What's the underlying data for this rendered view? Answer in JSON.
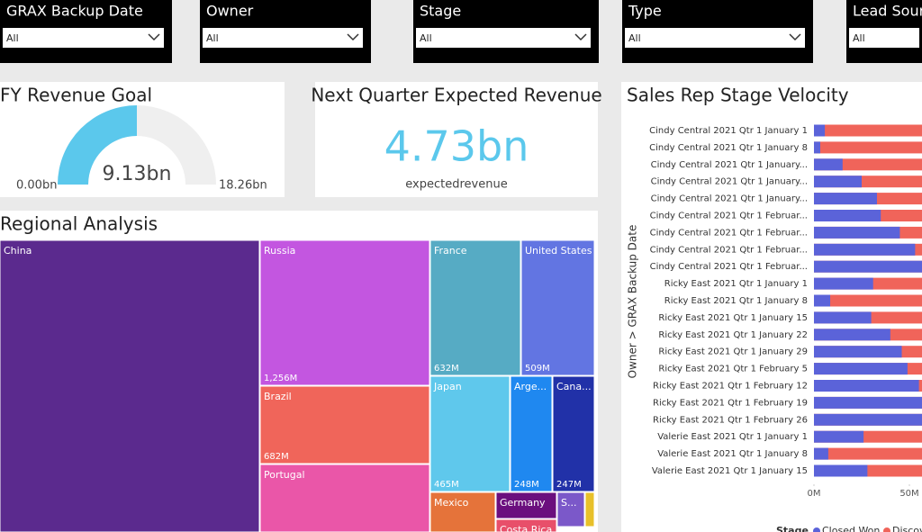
{
  "filters": [
    {
      "title": "GRAX Backup Date",
      "value": "All"
    },
    {
      "title": "Owner",
      "value": "All"
    },
    {
      "title": "Stage",
      "value": "All"
    },
    {
      "title": "Type",
      "value": "All"
    },
    {
      "title": "Lead Sour",
      "value": "All"
    }
  ],
  "fy_revenue_goal": {
    "title": "FY Revenue Goal",
    "color": "#5bc8ec",
    "min": {
      "value": 0,
      "label": "0.00bn"
    },
    "max": {
      "value": 18.26,
      "label": "18.26bn"
    },
    "value": {
      "value": 9.13,
      "label": "9.13bn"
    }
  },
  "next_quarter": {
    "title": "Next Quarter Expected Revenue",
    "value": "4.73bn",
    "caption": "expectedrevenue"
  },
  "regional_analysis": {
    "title": "Regional Analysis",
    "items": [
      {
        "name": "China",
        "color": "#5b2a8e"
      },
      {
        "name": "Russia",
        "label": "1,256M",
        "color": "#c356e0"
      },
      {
        "name": "Brazil",
        "label": "682M",
        "color": "#f0655a"
      },
      {
        "name": "Portugal",
        "color": "#ea56a8"
      },
      {
        "name": "France",
        "label": "632M",
        "color": "#56abc4"
      },
      {
        "name": "United States",
        "label": "509M",
        "color": "#6275e2"
      },
      {
        "name": "Japan",
        "label": "465M",
        "color": "#5fc8ec"
      },
      {
        "name": "Arge...",
        "label": "248M",
        "color": "#1f88f0"
      },
      {
        "name": "Cana...",
        "label": "247M",
        "color": "#2131a8"
      },
      {
        "name": "Mexico",
        "color": "#e5733a"
      },
      {
        "name": "Germany",
        "color": "#6b0f7e"
      },
      {
        "name": "Costa Rica",
        "color": "#e84f6a"
      },
      {
        "name": "S...",
        "color": "#7b58c9"
      }
    ]
  },
  "chart_data": {
    "type": "bar",
    "orientation": "horizontal",
    "title": "Sales Rep Stage Velocity",
    "y_label": "Owner > GRAX Backup Date",
    "legend_title": "Stage",
    "categories": [
      "Cindy Central 2021 Qtr 1 January 1",
      "Cindy Central 2021 Qtr 1 January 8",
      "Cindy Central 2021 Qtr 1 January...",
      "Cindy Central 2021 Qtr 1 January...",
      "Cindy Central 2021 Qtr 1 January...",
      "Cindy Central 2021 Qtr 1 Februar...",
      "Cindy Central 2021 Qtr 1 Februar...",
      "Cindy Central 2021 Qtr 1 Februar...",
      "Cindy Central 2021 Qtr 1 Februar...",
      "Ricky East 2021 Qtr 1 January 1",
      "Ricky East 2021 Qtr 1 January 8",
      "Ricky East 2021 Qtr 1 January 15",
      "Ricky East 2021 Qtr 1 January 22",
      "Ricky East 2021 Qtr 1 January 29",
      "Ricky East 2021 Qtr 1 February 5",
      "Ricky East 2021 Qtr 1 February 12",
      "Ricky East 2021 Qtr 1 February 19",
      "Ricky East 2021 Qtr 1 February 26",
      "Valerie East 2021 Qtr 1 January 1",
      "Valerie East 2021 Qtr 1 January 8",
      "Valerie East 2021 Qtr 1 January 15"
    ],
    "series": [
      {
        "name": "Closed Won",
        "color": "#5b63d9",
        "values": [
          5.7,
          3.3,
          15,
          25,
          33,
          35,
          45,
          53,
          57,
          31,
          8.5,
          30,
          40,
          46,
          49,
          55,
          57,
          57,
          26,
          7.5,
          28
        ]
      },
      {
        "name": "Discov",
        "color": "#f0645a"
      }
    ],
    "xlim": [
      0,
      56.6
    ],
    "xticks": [
      {
        "value": 0,
        "label": "0M"
      },
      {
        "value": 50,
        "label": "50M"
      }
    ]
  }
}
